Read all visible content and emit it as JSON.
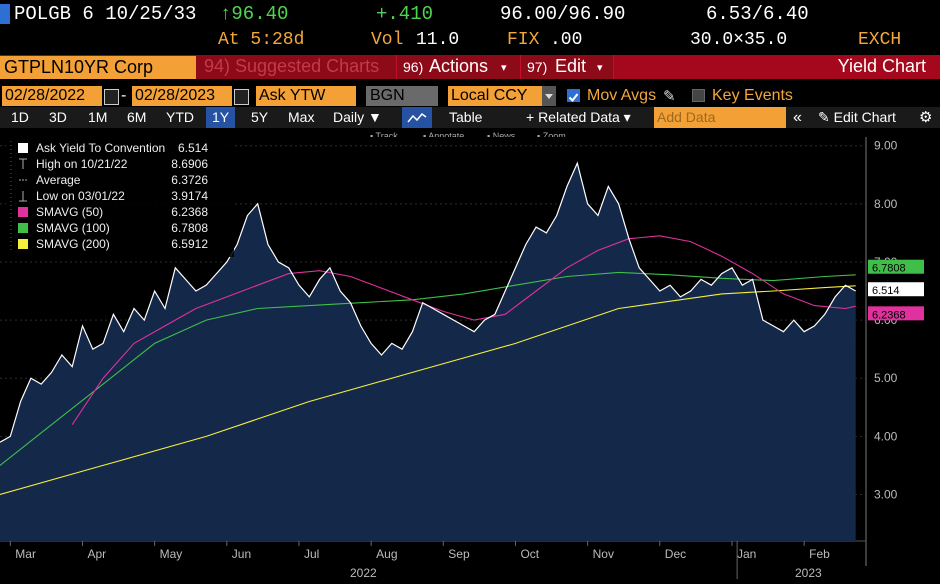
{
  "quote": {
    "security": "POLGB 6 10/25/33",
    "price": "↑96.40",
    "change": "+.410",
    "bid_ask": "96.00/96.90",
    "yield_bid_ask": "6.53/6.40",
    "time": "At 5:28d",
    "volume_label": "Vol",
    "volume": "11.0",
    "source_label": "FIX",
    "source_value": ".00",
    "size": "30.0×35.0",
    "exchange": "EXCH"
  },
  "command_bar": {
    "ticker": "GTPLN10YR Corp",
    "suggested": "94) Suggested Charts",
    "actions_num": "96)",
    "actions": "Actions",
    "edit_num": "97)",
    "edit": "Edit",
    "title": "Yield Chart"
  },
  "settings": {
    "start_date": "02/28/2022",
    "date_sep": "-",
    "end_date": "02/28/2023",
    "field": "Ask YTW",
    "source": "BGN",
    "currency": "Local CCY",
    "mov_avgs": "Mov Avgs",
    "key_events": "Key Events"
  },
  "toolbar": {
    "periods": [
      "1D",
      "3D",
      "1M",
      "6M",
      "YTD",
      "1Y",
      "5Y",
      "Max"
    ],
    "selected_period": "1Y",
    "frequency": "Daily",
    "table": "Table",
    "related": "+ Related Data",
    "add_data_placeholder": "Add Data",
    "edit_chart": "Edit Chart",
    "mini": [
      "Track",
      "Annotate",
      "News",
      "Zoom"
    ]
  },
  "legend": [
    {
      "label": "Ask Yield To Convention",
      "value": "6.514",
      "color": "#ffffff",
      "marker": "square"
    },
    {
      "label": "High on 10/21/22",
      "value": "8.6906",
      "color": "#cccccc",
      "marker": "high"
    },
    {
      "label": "Average",
      "value": "6.3726",
      "color": "#cccccc",
      "marker": "avg"
    },
    {
      "label": "Low on 03/01/22",
      "value": "3.9174",
      "color": "#cccccc",
      "marker": "low"
    },
    {
      "label": "SMAVG (50)",
      "value": "6.2368",
      "color": "#e0319e",
      "marker": "square"
    },
    {
      "label": "SMAVG (100)",
      "value": "6.7808",
      "color": "#3fbf4a",
      "marker": "square"
    },
    {
      "label": "SMAVG (200)",
      "value": "6.5912",
      "color": "#f5f03a",
      "marker": "square"
    }
  ],
  "colors": {
    "yield_fill": "#14284a",
    "yield_line": "#ffffff",
    "sma50": "#e0319e",
    "sma100": "#3fbf4a",
    "sma200": "#f5f03a",
    "accent_orange": "#f3a036",
    "bar_red": "#a5071c"
  },
  "chart_data": {
    "type": "area",
    "y_ticks": [
      "3.00",
      "4.00",
      "5.00",
      "6.00",
      "7.00",
      "8.00",
      "9.00"
    ],
    "ylim": [
      2.2,
      9.15
    ],
    "x_labels": [
      "Mar",
      "Apr",
      "May",
      "Jun",
      "Jul",
      "Aug",
      "Sep",
      "Oct",
      "Nov",
      "Dec",
      "Jan",
      "Feb"
    ],
    "year_labels": [
      "2022",
      "2023"
    ],
    "end_labels": [
      {
        "value": 6.7808,
        "text": "6.7808",
        "color": "#3fbf4a"
      },
      {
        "value": 6.514,
        "text": "6.514",
        "color": "#ffffff"
      },
      {
        "value": 6.2368,
        "text": "6.2368",
        "color": "#e0319e"
      }
    ],
    "series": [
      {
        "name": "Ask Yield To Convention",
        "values": [
          [
            0,
            3.9
          ],
          [
            2,
            4.0
          ],
          [
            4,
            4.6
          ],
          [
            6,
            5.0
          ],
          [
            8,
            4.9
          ],
          [
            10,
            5.1
          ],
          [
            12,
            5.4
          ],
          [
            14,
            5.2
          ],
          [
            16,
            5.9
          ],
          [
            18,
            5.5
          ],
          [
            20,
            5.6
          ],
          [
            22,
            6.1
          ],
          [
            24,
            5.8
          ],
          [
            26,
            6.2
          ],
          [
            28,
            6.0
          ],
          [
            30,
            6.5
          ],
          [
            32,
            6.2
          ],
          [
            34,
            6.9
          ],
          [
            36,
            6.7
          ],
          [
            38,
            6.5
          ],
          [
            40,
            6.6
          ],
          [
            42,
            6.8
          ],
          [
            44,
            7.0
          ],
          [
            46,
            7.3
          ],
          [
            48,
            7.8
          ],
          [
            50,
            8.0
          ],
          [
            52,
            7.3
          ],
          [
            54,
            7.0
          ],
          [
            56,
            6.9
          ],
          [
            58,
            6.6
          ],
          [
            60,
            6.4
          ],
          [
            62,
            6.7
          ],
          [
            64,
            6.9
          ],
          [
            66,
            6.5
          ],
          [
            68,
            6.3
          ],
          [
            70,
            5.9
          ],
          [
            72,
            5.6
          ],
          [
            74,
            5.4
          ],
          [
            76,
            5.6
          ],
          [
            78,
            5.5
          ],
          [
            80,
            5.8
          ],
          [
            82,
            6.3
          ],
          [
            84,
            6.2
          ],
          [
            86,
            6.1
          ],
          [
            88,
            6.0
          ],
          [
            90,
            5.9
          ],
          [
            92,
            5.8
          ],
          [
            94,
            6.0
          ],
          [
            96,
            6.1
          ],
          [
            98,
            6.5
          ],
          [
            100,
            6.9
          ],
          [
            102,
            7.3
          ],
          [
            104,
            7.6
          ],
          [
            106,
            7.5
          ],
          [
            108,
            7.8
          ],
          [
            110,
            8.3
          ],
          [
            112,
            8.7
          ],
          [
            114,
            8.0
          ],
          [
            116,
            7.8
          ],
          [
            118,
            8.3
          ],
          [
            120,
            8.0
          ],
          [
            122,
            7.4
          ],
          [
            124,
            6.9
          ],
          [
            126,
            6.7
          ],
          [
            128,
            6.5
          ],
          [
            130,
            6.6
          ],
          [
            132,
            6.4
          ],
          [
            134,
            6.5
          ],
          [
            136,
            6.7
          ],
          [
            138,
            6.6
          ],
          [
            140,
            6.8
          ],
          [
            142,
            6.9
          ],
          [
            144,
            6.6
          ],
          [
            146,
            6.7
          ],
          [
            148,
            6.0
          ],
          [
            150,
            5.9
          ],
          [
            152,
            5.8
          ],
          [
            154,
            6.0
          ],
          [
            156,
            5.8
          ],
          [
            158,
            5.9
          ],
          [
            160,
            6.1
          ],
          [
            162,
            6.4
          ],
          [
            164,
            6.6
          ],
          [
            166,
            6.5
          ]
        ]
      },
      {
        "name": "SMAVG (50)",
        "values": [
          [
            14,
            4.2
          ],
          [
            20,
            5.0
          ],
          [
            26,
            5.6
          ],
          [
            32,
            5.9
          ],
          [
            38,
            6.2
          ],
          [
            44,
            6.4
          ],
          [
            50,
            6.6
          ],
          [
            56,
            6.8
          ],
          [
            62,
            6.85
          ],
          [
            68,
            6.75
          ],
          [
            74,
            6.55
          ],
          [
            80,
            6.35
          ],
          [
            86,
            6.15
          ],
          [
            92,
            6.0
          ],
          [
            98,
            6.1
          ],
          [
            104,
            6.5
          ],
          [
            110,
            6.9
          ],
          [
            116,
            7.2
          ],
          [
            122,
            7.4
          ],
          [
            128,
            7.45
          ],
          [
            134,
            7.35
          ],
          [
            140,
            7.1
          ],
          [
            146,
            6.8
          ],
          [
            152,
            6.45
          ],
          [
            158,
            6.25
          ],
          [
            164,
            6.2
          ],
          [
            166,
            6.24
          ]
        ]
      },
      {
        "name": "SMAVG (100)",
        "values": [
          [
            0,
            3.5
          ],
          [
            10,
            4.2
          ],
          [
            20,
            4.9
          ],
          [
            30,
            5.6
          ],
          [
            40,
            6.0
          ],
          [
            50,
            6.2
          ],
          [
            60,
            6.25
          ],
          [
            70,
            6.3
          ],
          [
            80,
            6.35
          ],
          [
            90,
            6.45
          ],
          [
            100,
            6.6
          ],
          [
            110,
            6.75
          ],
          [
            120,
            6.82
          ],
          [
            130,
            6.78
          ],
          [
            140,
            6.72
          ],
          [
            150,
            6.68
          ],
          [
            160,
            6.75
          ],
          [
            166,
            6.78
          ]
        ]
      },
      {
        "name": "SMAVG (200)",
        "values": [
          [
            0,
            3.0
          ],
          [
            20,
            3.5
          ],
          [
            40,
            4.0
          ],
          [
            60,
            4.6
          ],
          [
            80,
            5.1
          ],
          [
            100,
            5.6
          ],
          [
            120,
            6.2
          ],
          [
            140,
            6.45
          ],
          [
            150,
            6.5
          ],
          [
            160,
            6.56
          ],
          [
            166,
            6.59
          ]
        ]
      }
    ],
    "grid": true
  }
}
